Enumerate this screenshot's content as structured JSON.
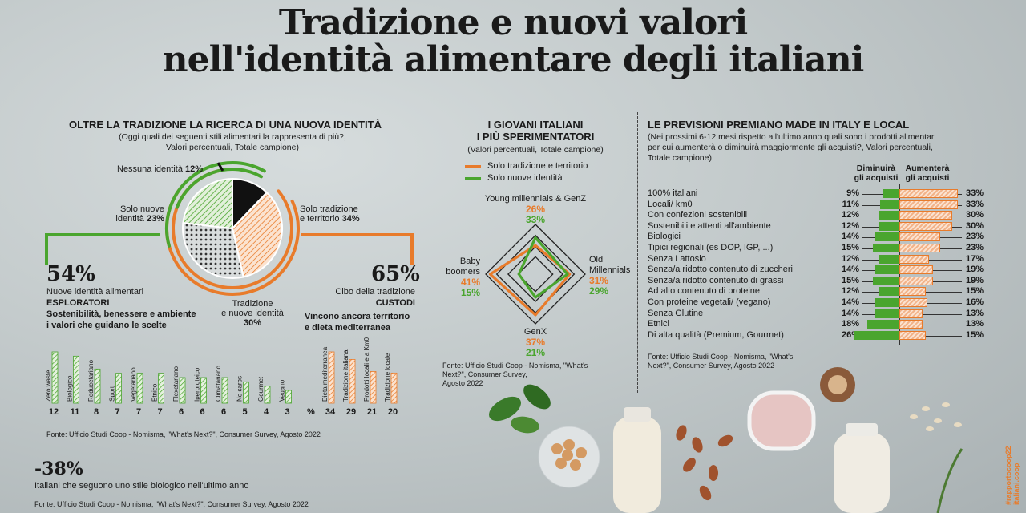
{
  "title_line1": "Tradizione e nuovi valori",
  "title_line2": "nell'identità alimentare degli italiani",
  "colors": {
    "green": "#4aa52e",
    "orange": "#e87b2b",
    "black": "#111111"
  },
  "left": {
    "heading": "OLTRE LA TRADIZIONE LA RICERCA DI UNA NUOVA IDENTITÀ",
    "subtitle1": "(Oggi quali dei seguenti stili alimentari la rappresenta di più?,",
    "subtitle2": "Valori percentuali, Totale campione)",
    "pie": {
      "nessuna_label": "Nessuna identità",
      "nessuna_value": "12%",
      "nuove_label1": "Solo nuove",
      "nuove_label2": "identità",
      "nuove_value": "23%",
      "trad_label1": "Solo tradizione",
      "trad_label2": "e territorio",
      "trad_value": "34%",
      "mix_label1": "Tradizione",
      "mix_label2": "e nuove identità",
      "mix_value": "30%"
    },
    "esploratori": {
      "pct": "54%",
      "line1": "Nuove identità alimentari",
      "name": "ESPLORATORI",
      "desc1": "Sostenibilità, benessere e ambiente",
      "desc2": "i valori che guidano le scelte"
    },
    "custodi": {
      "pct": "65%",
      "line1": "Cibo della tradizione",
      "name": "CUSTODI",
      "desc1": "Vincono ancora territorio",
      "desc2": "e dieta mediterranea"
    },
    "pct_sign": "%",
    "source1": "Fonte: Ufficio Studi Coop - Nomisma, \"What's Next?\", Consumer Survey, Agosto 2022",
    "bio_pct": "-38%",
    "bio_text": "Italiani che seguono uno stile biologico nell'ultimo anno",
    "source2": "Fonte: Ufficio Studi Coop - Nomisma, \"What's Next?\", Consumer Survey, Agosto 2022"
  },
  "middle": {
    "heading1": "I GIOVANI ITALIANI",
    "heading2": "I PIÙ SPERIMENTATORI",
    "subtitle": "(Valori percentuali, Totale campione)",
    "legend_trad": "Solo tradizione e territorio",
    "legend_nuove": "Solo nuove identità",
    "young_label": "Young millennials & GenZ",
    "young_o": "26%",
    "young_g": "33%",
    "old_label1": "Old",
    "old_label2": "Millennials",
    "old_o": "31%",
    "old_g": "29%",
    "baby_label1": "Baby",
    "baby_label2": "boomers",
    "baby_o": "41%",
    "baby_g": "15%",
    "genx_label": "GenX",
    "genx_o": "37%",
    "genx_g": "21%",
    "source1": "Fonte: Ufficio Studi Coop - Nomisma, \"What's",
    "source2": "Next?\", Consumer Survey,",
    "source3": "Agosto 2022"
  },
  "right": {
    "heading": "LE PREVISIONI PREMIANO MADE IN ITALY E LOCAL",
    "subtitle1": "(Nei prossimi 6-12 mesi rispetto all'ultimo anno quali sono i prodotti alimentari",
    "subtitle2": "per cui aumenterà o diminuirà maggiormente gli acquisti?, Valori percentuali,",
    "subtitle3": "Totale campione)",
    "col_dim1": "Diminuirà",
    "col_dim2": "gli acquisti",
    "col_aum1": "Aumenterà",
    "col_aum2": "gli acquisti",
    "source1": "Fonte: Ufficio Studi Coop - Nomisma, \"What's",
    "source2": "Next?\", Consumer Survey, Agosto 2022"
  },
  "side_text": "#rapportocoop22 italiani.coop",
  "chart_data": [
    {
      "type": "pie",
      "title": "OLTRE LA TRADIZIONE LA RICERCA DI UNA NUOVA IDENTITÀ",
      "categories": [
        "Nessuna identità",
        "Solo tradizione e territorio",
        "Tradizione e nuove identità",
        "Solo nuove identità"
      ],
      "values": [
        12,
        34,
        30,
        23
      ]
    },
    {
      "type": "bar",
      "title": "ESPLORATORI",
      "categories": [
        "Zero waste",
        "Biologico",
        "Reducetariano",
        "Sport",
        "Vegetariano",
        "Etnico",
        "Flexetariano",
        "Iperproteico",
        "Climatariano",
        "No carbs",
        "Gourmet",
        "Vegano"
      ],
      "values": [
        12,
        11,
        8,
        7,
        7,
        7,
        6,
        6,
        6,
        5,
        4,
        3
      ]
    },
    {
      "type": "bar",
      "title": "CUSTODI",
      "categories": [
        "Dieta mediterranea",
        "Tradizione italiana",
        "Prodotti locali e a Km0",
        "Tradizione locale"
      ],
      "values": [
        34,
        29,
        21,
        20
      ]
    },
    {
      "type": "radar",
      "title": "I GIOVANI ITALIANI I PIÙ SPERIMENTATORI",
      "categories": [
        "Young millennials & GenZ",
        "Old Millennials",
        "GenX",
        "Baby boomers"
      ],
      "series": [
        {
          "name": "Solo tradizione e territorio",
          "values": [
            26,
            31,
            37,
            41
          ]
        },
        {
          "name": "Solo nuove identità",
          "values": [
            33,
            29,
            21,
            15
          ]
        }
      ]
    },
    {
      "type": "bar",
      "title": "LE PREVISIONI PREMIANO MADE IN ITALY E LOCAL",
      "categories": [
        "100% italiani",
        "Locali/ km0",
        "Con confezioni sostenibili",
        "Sostenibili e attenti all'ambiente",
        "Biologici",
        "Tipici regionali (es DOP, IGP, ...)",
        "Senza Lattosio",
        "Senza/a ridotto contenuto di zuccheri",
        "Senza/a ridotto contenuto di grassi",
        "Ad alto contenuto di proteine",
        "Con proteine vegetali/ (vegano)",
        "Senza Glutine",
        "Etnici",
        "Di alta qualità (Premium, Gourmet)"
      ],
      "series": [
        {
          "name": "Diminuirà gli acquisti",
          "values": [
            9,
            11,
            12,
            12,
            14,
            15,
            12,
            14,
            15,
            12,
            14,
            14,
            18,
            26
          ]
        },
        {
          "name": "Aumenterà gli acquisti",
          "values": [
            33,
            33,
            30,
            30,
            23,
            23,
            17,
            19,
            19,
            15,
            16,
            13,
            13,
            15
          ]
        }
      ]
    }
  ]
}
